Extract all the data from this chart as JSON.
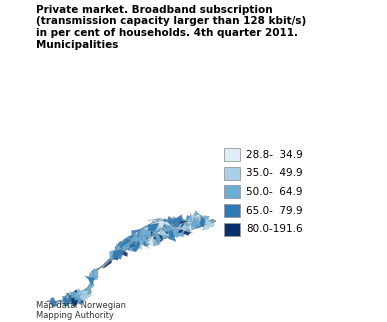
{
  "title_lines": [
    "Private market. Broadband subscription",
    "(transmission capacity larger than 128 kbit/s)",
    "in per cent of households. 4th quarter 2011.",
    "Municipalities"
  ],
  "legend_labels": [
    "28.8-  34.9",
    "35.0-  49.9",
    "50.0-  64.9",
    "65.0-  79.9",
    "80.0-191.6"
  ],
  "legend_colors": [
    "#ddeef6",
    "#a8d1e8",
    "#6aaed6",
    "#2e7ab6",
    "#08306b"
  ],
  "map_note": "Map data: Norwegian\nMapping Authority",
  "bg_color": "#ffffff",
  "title_fontsize": 7.5,
  "legend_fontsize": 7.5
}
